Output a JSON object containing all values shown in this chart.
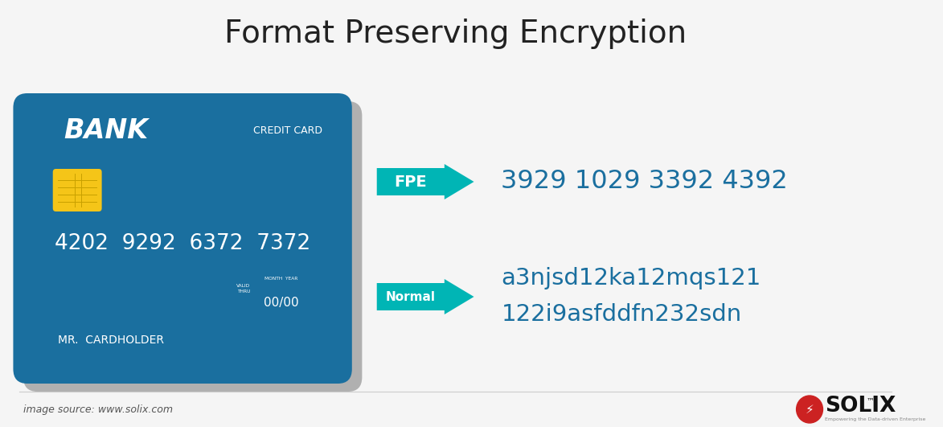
{
  "title": "Format Preserving Encryption",
  "title_fontsize": 28,
  "bg_color": "#f5f5f5",
  "card_color": "#1a6f9f",
  "card_shadow_color": "#b0b0b0",
  "card_text_white": "#ffffff",
  "card_bank_text": "BANK",
  "card_credit_text": "CREDIT CARD",
  "card_number": "4202  9292  6372  7372",
  "card_date_month_year": "MONTH  YEAR",
  "card_date_valid": "VALID",
  "card_date_thru": "THRU",
  "card_date_value": "00/00",
  "card_holder": "MR.  CARDHOLDER",
  "chip_color": "#f5c518",
  "chip_line_color": "#c8a000",
  "fpe_label": "FPE",
  "fpe_output": "3929 1029 3392 4392",
  "normal_label": "Normal",
  "normal_output_line1": "a3njsd12ka12mqs121",
  "normal_output_line2": "122i9asfddfn232sdn",
  "arrow_color": "#00b5b5",
  "output_text_color": "#1a6f9f",
  "image_source_text": "image source: www.solix.com",
  "solix_text": "SOLIX",
  "solix_tm": "™",
  "solix_red": "#cc2222",
  "solix_small": "Empowering the Data-driven Enterprise",
  "divider_color": "#cccccc",
  "bottom_text_color": "#555555",
  "title_color": "#222222"
}
